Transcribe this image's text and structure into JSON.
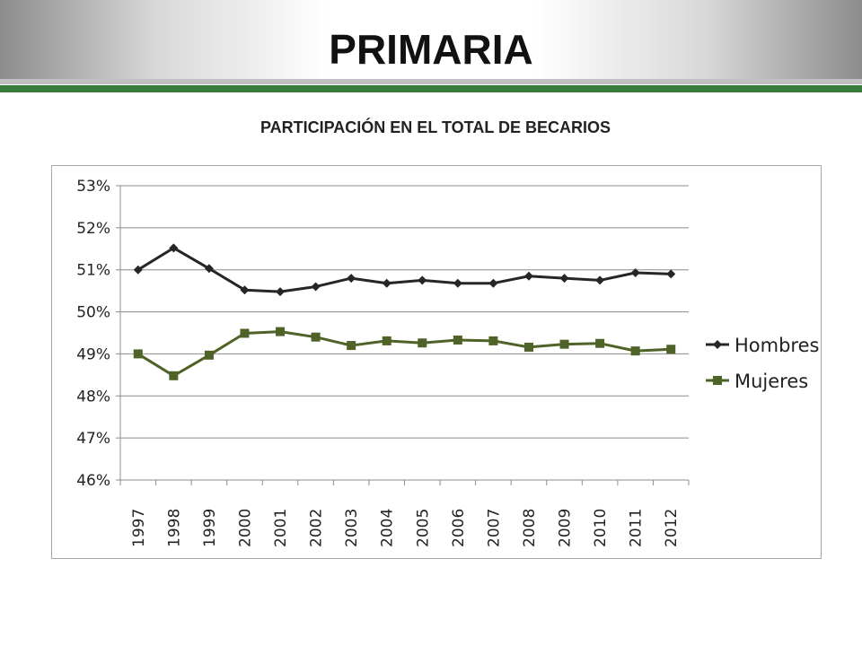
{
  "slide": {
    "title": "PRIMARIA"
  },
  "colors": {
    "accent_green": "#3a7a3a",
    "hombres_series": "#262626",
    "mujeres_series": "#4f6228"
  },
  "chart_data": {
    "type": "line",
    "title": "PARTICIPACIÓN EN EL TOTAL DE BECARIOS",
    "xlabel": "",
    "ylabel": "",
    "categories": [
      "1997",
      "1998",
      "1999",
      "2000",
      "2001",
      "2002",
      "2003",
      "2004",
      "2005",
      "2006",
      "2007",
      "2008",
      "2009",
      "2010",
      "2011",
      "2012"
    ],
    "y_ticks": [
      "53%",
      "52%",
      "51%",
      "50%",
      "49%",
      "48%",
      "47%",
      "46%"
    ],
    "ylim": [
      46,
      53
    ],
    "grid": true,
    "legend_position": "right",
    "series": [
      {
        "name": "Hombres",
        "marker": "diamond",
        "color": "#262626",
        "values": [
          51.0,
          51.52,
          51.03,
          50.52,
          50.48,
          50.6,
          50.8,
          50.68,
          50.75,
          50.68,
          50.68,
          50.85,
          50.8,
          50.75,
          50.93,
          50.9
        ]
      },
      {
        "name": "Mujeres",
        "marker": "square",
        "color": "#4f6228",
        "values": [
          49.0,
          48.48,
          48.97,
          49.49,
          49.53,
          49.4,
          49.2,
          49.31,
          49.26,
          49.33,
          49.31,
          49.16,
          49.23,
          49.25,
          49.07,
          49.11
        ]
      }
    ]
  }
}
